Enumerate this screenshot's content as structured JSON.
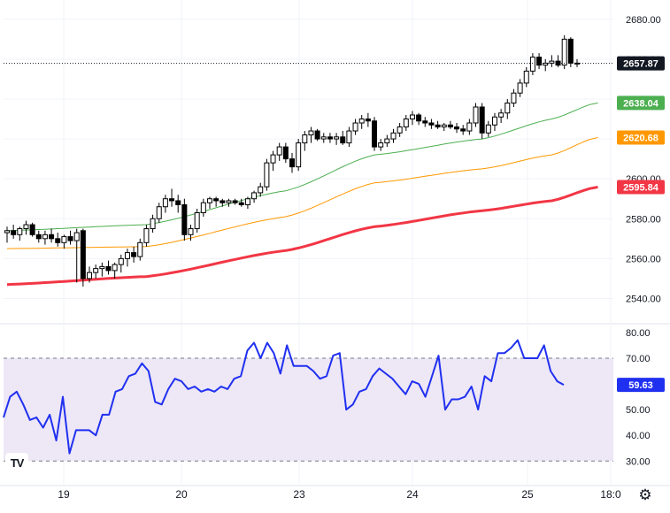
{
  "branding": {
    "logo_text": "TV"
  },
  "ui": {
    "settings_icon": "gear-icon"
  },
  "chart_data": [
    {
      "type": "candlestick",
      "title": "",
      "x_ticks": [
        "19",
        "20",
        "23",
        "24",
        "25",
        "18:0"
      ],
      "y_ticks": [
        "2680.00",
        "2660.00",
        "2640.00",
        "2620.00",
        "2600.00",
        "2580.00",
        "2560.00",
        "2540.00"
      ],
      "ylim": [
        2534,
        2683
      ],
      "grid": true,
      "last_price": {
        "label": "2657.87",
        "value": 2657.87,
        "color": "#131722"
      },
      "ohlc": [
        [
          2573,
          2576,
          2568,
          2574
        ],
        [
          2574,
          2577,
          2570,
          2572
        ],
        [
          2572,
          2576,
          2569,
          2575
        ],
        [
          2575,
          2579,
          2572,
          2577
        ],
        [
          2577,
          2578,
          2571,
          2572
        ],
        [
          2572,
          2574,
          2568,
          2570
        ],
        [
          2570,
          2574,
          2567,
          2572
        ],
        [
          2572,
          2575,
          2568,
          2570
        ],
        [
          2570,
          2573,
          2566,
          2568
        ],
        [
          2568,
          2572,
          2565,
          2571
        ],
        [
          2571,
          2574,
          2567,
          2569
        ],
        [
          2569,
          2575,
          2548,
          2573
        ],
        [
          2574,
          2575,
          2546,
          2550
        ],
        [
          2550,
          2556,
          2548,
          2553
        ],
        [
          2553,
          2557,
          2550,
          2555
        ],
        [
          2555,
          2558,
          2551,
          2556
        ],
        [
          2556,
          2559,
          2552,
          2554
        ],
        [
          2554,
          2558,
          2550,
          2557
        ],
        [
          2557,
          2562,
          2553,
          2560
        ],
        [
          2560,
          2565,
          2556,
          2563
        ],
        [
          2563,
          2566,
          2558,
          2561
        ],
        [
          2561,
          2570,
          2559,
          2568
        ],
        [
          2568,
          2577,
          2566,
          2575
        ],
        [
          2575,
          2582,
          2573,
          2580
        ],
        [
          2580,
          2588,
          2578,
          2586
        ],
        [
          2586,
          2592,
          2583,
          2590
        ],
        [
          2590,
          2595,
          2586,
          2589
        ],
        [
          2589,
          2592,
          2583,
          2587
        ],
        [
          2587,
          2590,
          2569,
          2572
        ],
        [
          2572,
          2577,
          2569,
          2575
        ],
        [
          2575,
          2585,
          2573,
          2583
        ],
        [
          2583,
          2590,
          2581,
          2588
        ],
        [
          2588,
          2591,
          2585,
          2590
        ],
        [
          2590,
          2591,
          2586,
          2589
        ],
        [
          2589,
          2590,
          2586,
          2588
        ],
        [
          2588,
          2590,
          2586,
          2589
        ],
        [
          2589,
          2590,
          2587,
          2588
        ],
        [
          2588,
          2590,
          2586,
          2587
        ],
        [
          2587,
          2591,
          2585,
          2590
        ],
        [
          2590,
          2594,
          2588,
          2593
        ],
        [
          2593,
          2598,
          2591,
          2596
        ],
        [
          2596,
          2610,
          2594,
          2608
        ],
        [
          2608,
          2614,
          2604,
          2612
        ],
        [
          2612,
          2618,
          2609,
          2616
        ],
        [
          2616,
          2618,
          2608,
          2610
        ],
        [
          2610,
          2613,
          2603,
          2606
        ],
        [
          2606,
          2620,
          2604,
          2618
        ],
        [
          2618,
          2624,
          2614,
          2622
        ],
        [
          2622,
          2626,
          2618,
          2624
        ],
        [
          2624,
          2625,
          2619,
          2620
        ],
        [
          2620,
          2623,
          2618,
          2621
        ],
        [
          2621,
          2623,
          2618,
          2620
        ],
        [
          2620,
          2623,
          2617,
          2621
        ],
        [
          2621,
          2624,
          2617,
          2618
        ],
        [
          2618,
          2626,
          2616,
          2624
        ],
        [
          2624,
          2630,
          2622,
          2628
        ],
        [
          2628,
          2632,
          2625,
          2630
        ],
        [
          2630,
          2633,
          2626,
          2629
        ],
        [
          2629,
          2631,
          2614,
          2616
        ],
        [
          2616,
          2620,
          2614,
          2618
        ],
        [
          2618,
          2622,
          2616,
          2620
        ],
        [
          2620,
          2625,
          2618,
          2623
        ],
        [
          2623,
          2628,
          2621,
          2626
        ],
        [
          2626,
          2632,
          2624,
          2630
        ],
        [
          2630,
          2634,
          2627,
          2632
        ],
        [
          2632,
          2633,
          2627,
          2629
        ],
        [
          2629,
          2631,
          2626,
          2628
        ],
        [
          2628,
          2630,
          2625,
          2627
        ],
        [
          2627,
          2629,
          2625,
          2626
        ],
        [
          2626,
          2628,
          2624,
          2627
        ],
        [
          2627,
          2629,
          2625,
          2626
        ],
        [
          2626,
          2628,
          2623,
          2625
        ],
        [
          2625,
          2627,
          2622,
          2624
        ],
        [
          2624,
          2630,
          2622,
          2628
        ],
        [
          2628,
          2638,
          2626,
          2636
        ],
        [
          2636,
          2638,
          2620,
          2623
        ],
        [
          2623,
          2629,
          2621,
          2627
        ],
        [
          2627,
          2633,
          2624,
          2631
        ],
        [
          2631,
          2635,
          2628,
          2633
        ],
        [
          2633,
          2640,
          2630,
          2638
        ],
        [
          2638,
          2645,
          2636,
          2643
        ],
        [
          2643,
          2650,
          2641,
          2648
        ],
        [
          2648,
          2656,
          2646,
          2654
        ],
        [
          2654,
          2663,
          2652,
          2661
        ],
        [
          2661,
          2663,
          2655,
          2657
        ],
        [
          2657,
          2660,
          2654,
          2658
        ],
        [
          2658,
          2662,
          2656,
          2659
        ],
        [
          2659,
          2662,
          2656,
          2657
        ],
        [
          2657,
          2672,
          2655,
          2670
        ],
        [
          2670,
          2671,
          2656,
          2658
        ],
        [
          2658,
          2660,
          2656,
          2657.87
        ]
      ],
      "series": [
        {
          "label": "2638.04",
          "color": "#4caf50",
          "width": 1,
          "x": [
            0,
            22,
            44,
            58,
            75,
            86,
            93
          ],
          "values": [
            2574,
            2577,
            2594,
            2612,
            2620,
            2630,
            2638.04
          ]
        },
        {
          "label": "2620.68",
          "color": "#ff9800",
          "width": 1,
          "x": [
            0,
            22,
            44,
            58,
            75,
            86,
            93
          ],
          "values": [
            2565,
            2566,
            2581,
            2598,
            2605,
            2612,
            2620.68
          ]
        },
        {
          "label": "2595.84",
          "color": "#f23645",
          "width": 3,
          "x": [
            0,
            22,
            44,
            58,
            75,
            86,
            93
          ],
          "values": [
            2547,
            2551,
            2564,
            2576,
            2584,
            2589,
            2595.84
          ]
        }
      ]
    },
    {
      "type": "line",
      "title": "",
      "y_ticks": [
        "80.00",
        "70.00",
        "60.00",
        "50.00",
        "40.00",
        "30.00"
      ],
      "ylim": [
        27,
        81
      ],
      "band": [
        30,
        70
      ],
      "band_color": "#ede7f6",
      "series": [
        {
          "label": "59.63",
          "color": "#2030f0",
          "values": [
            47,
            55,
            57,
            52,
            46,
            47,
            43,
            48,
            38,
            55,
            33,
            42,
            42,
            42,
            40,
            48,
            48,
            57,
            58,
            63,
            64,
            68,
            65,
            53,
            52,
            58,
            62,
            61,
            58,
            59,
            57,
            58,
            57,
            59,
            58,
            62,
            63,
            73,
            76,
            70,
            76,
            72,
            64,
            75,
            67,
            67,
            67,
            65,
            62,
            63,
            71,
            72,
            50,
            52,
            57,
            58,
            63,
            66,
            64,
            62,
            59,
            56,
            61,
            60,
            55,
            63,
            71,
            50,
            54,
            54,
            55,
            59,
            50,
            63,
            61,
            72,
            72,
            74,
            77,
            70,
            70,
            70,
            75,
            65,
            61,
            59.63
          ]
        }
      ]
    }
  ]
}
